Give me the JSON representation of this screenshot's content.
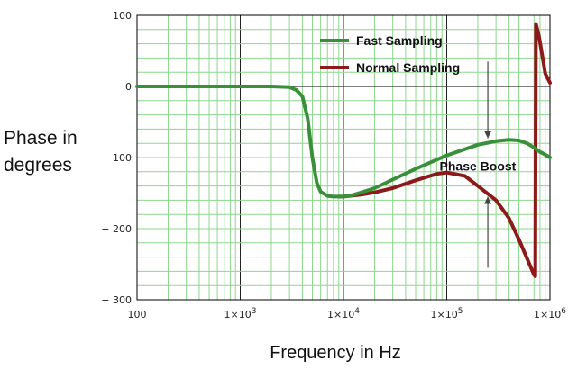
{
  "chart_data": {
    "type": "line",
    "title": "",
    "xlabel": "Frequency in Hz",
    "ylabel": [
      "Phase in",
      "degrees"
    ],
    "xscale": "log",
    "xlim": [
      100,
      1000000
    ],
    "ylim": [
      -300,
      100
    ],
    "grid": true,
    "legend_position": "top-right",
    "x_ticks": [
      {
        "value": 100,
        "base": "100",
        "exp": ""
      },
      {
        "value": 1000,
        "base": "1×10",
        "exp": "3"
      },
      {
        "value": 10000,
        "base": "1×10",
        "exp": "4"
      },
      {
        "value": 100000,
        "base": "1×10",
        "exp": "5"
      },
      {
        "value": 1000000,
        "base": "1×10",
        "exp": "6"
      }
    ],
    "y_ticks": [
      {
        "value": 100,
        "label": "100"
      },
      {
        "value": 0,
        "label": "0"
      },
      {
        "value": -100,
        "label": "− 100"
      },
      {
        "value": -200,
        "label": "− 200"
      },
      {
        "value": -300,
        "label": "− 300"
      }
    ],
    "series": [
      {
        "name": "Fast Sampling",
        "color": "#3a8f3a",
        "x": [
          100,
          1000,
          2000,
          3000,
          3500,
          4000,
          4500,
          5000,
          5500,
          6000,
          7000,
          8000,
          9000,
          10000,
          12000,
          15000,
          20000,
          30000,
          50000,
          100000,
          200000,
          300000,
          400000,
          500000,
          600000,
          700000,
          800000,
          900000,
          1000000
        ],
        "values": [
          0,
          0,
          0,
          -1,
          -5,
          -14,
          -45,
          -100,
          -135,
          -148,
          -154,
          -155,
          -155,
          -155,
          -153,
          -149,
          -143,
          -131,
          -116,
          -97,
          -82,
          -77,
          -75,
          -76,
          -80,
          -86,
          -92,
          -96,
          -100
        ]
      },
      {
        "name": "Normal Sampling",
        "color": "#8b1a1a",
        "x": [
          9000,
          10000,
          15000,
          20000,
          30000,
          50000,
          80000,
          100000,
          150000,
          200000,
          300000,
          400000,
          500000,
          600000,
          700000,
          720000,
          730000,
          780000,
          850000,
          900000,
          1000000
        ],
        "values": [
          -155,
          -155,
          -152,
          -149,
          -143,
          -132,
          -123,
          -121,
          -126,
          -140,
          -160,
          -185,
          -215,
          -242,
          -265,
          -267,
          88,
          72,
          40,
          18,
          5
        ]
      }
    ],
    "annotations": [
      {
        "text": "Phase Boost",
        "x": 200000,
        "y": -112
      },
      {
        "type": "arrow-down",
        "x": 250000,
        "from": 35,
        "to": -73
      },
      {
        "type": "arrow-up",
        "x": 250000,
        "from": -255,
        "to": -155
      }
    ]
  }
}
